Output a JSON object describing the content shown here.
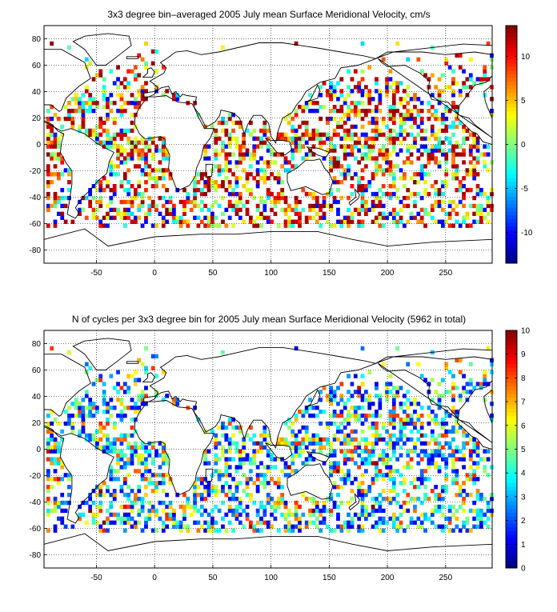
{
  "chart_data": [
    {
      "type": "heatmap",
      "title": "3x3 degree bin–averaged 2005 July mean Surface Meridional Velocity, cm/s",
      "xlim": [
        -95,
        290
      ],
      "ylim": [
        -90,
        90
      ],
      "x_ticks": [
        -50,
        0,
        50,
        100,
        150,
        200,
        250
      ],
      "y_ticks": [
        -80,
        -60,
        -40,
        -20,
        0,
        20,
        40,
        60,
        80
      ],
      "grid": "dotted",
      "bin_size_deg": 3,
      "colorbar": {
        "min": -13.5,
        "max": 13.5,
        "ticks": [
          -10,
          -5,
          0,
          5,
          10
        ],
        "colormap": "jet",
        "placement": "right"
      },
      "seed": 7,
      "value_kind": "diverging"
    },
    {
      "type": "heatmap",
      "title": "N of cycles per 3x3 degree bin for 2005 July mean Surface Meridional Velocity (5962 in total)",
      "xlim": [
        -95,
        290
      ],
      "ylim": [
        -90,
        90
      ],
      "x_ticks": [
        -50,
        0,
        50,
        100,
        150,
        200,
        250
      ],
      "y_ticks": [
        -80,
        -60,
        -40,
        -20,
        0,
        20,
        40,
        60,
        80
      ],
      "grid": "dotted",
      "bin_size_deg": 3,
      "colorbar": {
        "min": 0,
        "max": 10,
        "ticks": [
          0,
          1,
          2,
          3,
          4,
          5,
          6,
          7,
          8,
          9,
          10
        ],
        "colormap": "jet",
        "placement": "right"
      },
      "seed": 7,
      "value_kind": "count"
    }
  ]
}
